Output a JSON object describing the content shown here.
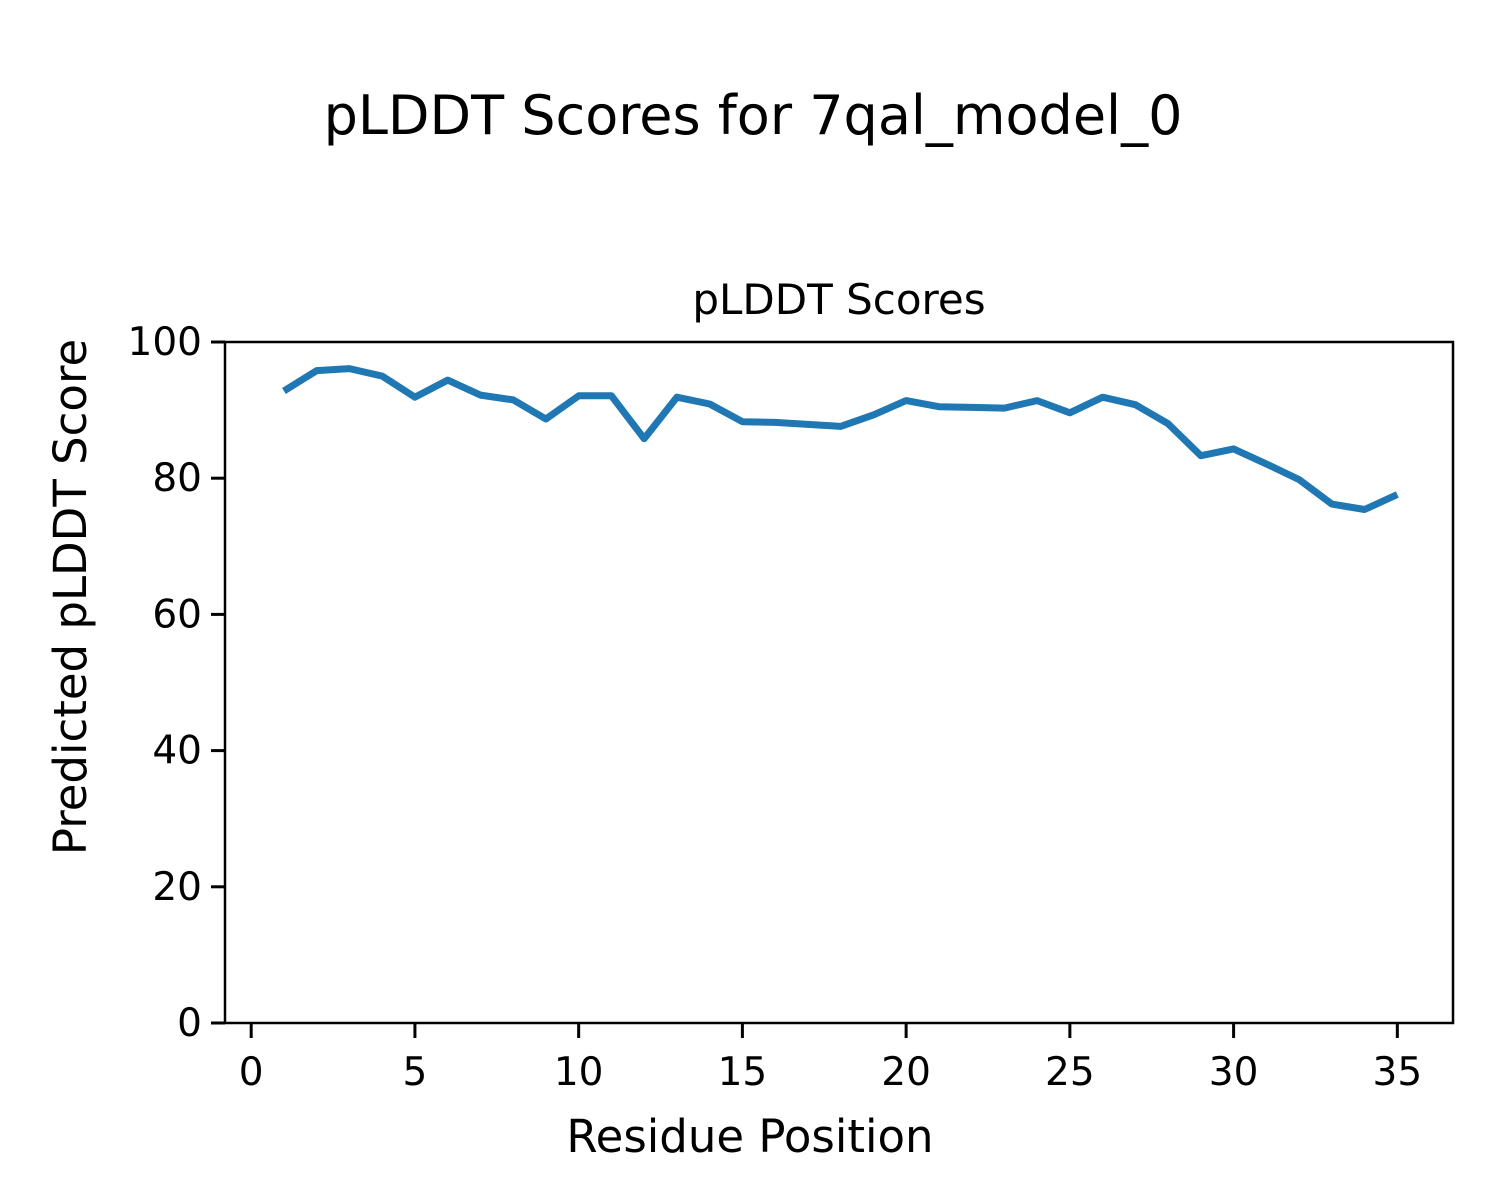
{
  "figure": {
    "suptitle": "pLDDT Scores for 7qal_model_0"
  },
  "chart_data": {
    "type": "line",
    "title": "pLDDT Scores",
    "xlabel": "Residue Position",
    "ylabel": "Predicted pLDDT Score",
    "x": [
      1,
      2,
      3,
      4,
      5,
      6,
      7,
      8,
      9,
      10,
      11,
      12,
      13,
      14,
      15,
      16,
      17,
      18,
      19,
      20,
      21,
      22,
      23,
      24,
      25,
      26,
      27,
      28,
      29,
      30,
      31,
      32,
      33,
      34,
      35
    ],
    "series": [
      {
        "name": "pLDDT",
        "color": "#1f77b4",
        "values": [
          92.8,
          95.8,
          96.1,
          95.0,
          91.9,
          94.4,
          92.2,
          91.5,
          88.7,
          92.1,
          92.1,
          85.8,
          91.9,
          90.9,
          88.3,
          88.2,
          87.9,
          87.6,
          89.3,
          91.4,
          90.5,
          90.4,
          90.3,
          91.4,
          89.6,
          91.9,
          90.8,
          88.0,
          83.3,
          84.3,
          82.1,
          79.8,
          76.2,
          75.4,
          77.6
        ]
      }
    ],
    "xlim": [
      -0.8,
      36.7
    ],
    "ylim": [
      0,
      100
    ],
    "xticks": [
      0,
      5,
      10,
      15,
      20,
      25,
      30,
      35
    ],
    "yticks": [
      0,
      20,
      40,
      60,
      80,
      100
    ],
    "grid": false,
    "legend": "none"
  }
}
